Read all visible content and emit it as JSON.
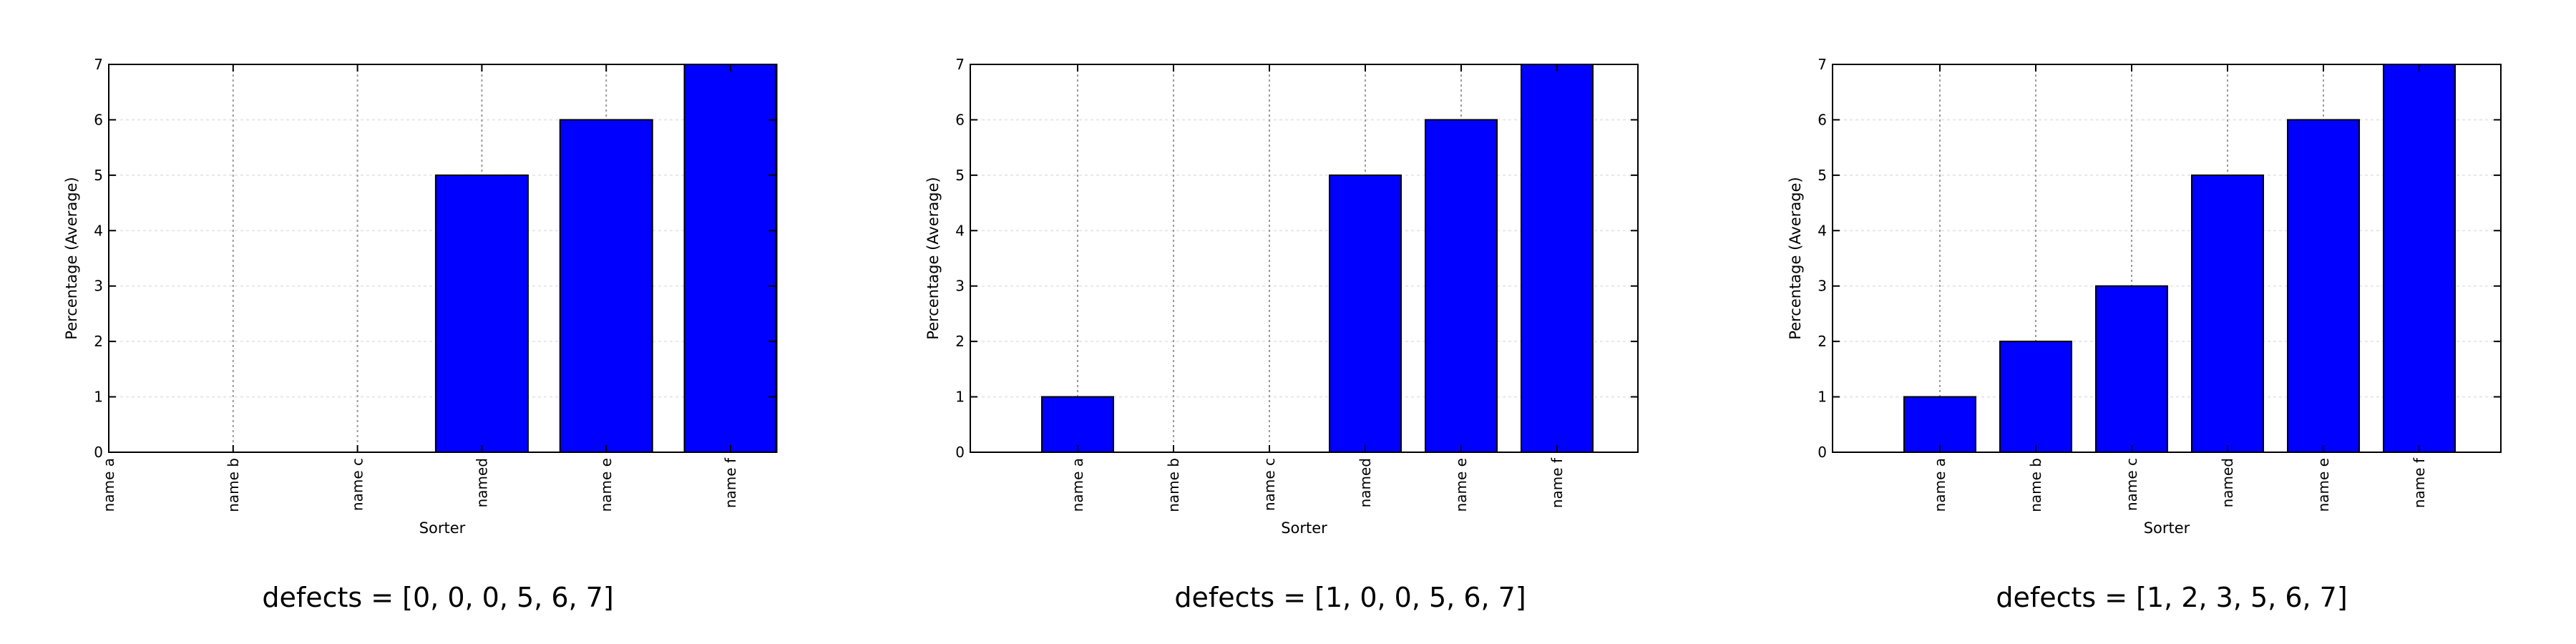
{
  "colors": {
    "bar": "#0000ff",
    "axis": "#000000",
    "grid": "#9a9a9a"
  },
  "chart_data": [
    {
      "type": "bar",
      "categories": [
        "name a",
        "name b",
        "name c",
        "named",
        "name e",
        "name f"
      ],
      "values": [
        0,
        0,
        0,
        5,
        6,
        7
      ],
      "xlabel": "Sorter",
      "ylabel": "Percentage (Average)",
      "ylim": [
        0,
        7
      ],
      "yticks": [
        "0",
        "1",
        "2",
        "3",
        "4",
        "5",
        "6",
        "7"
      ],
      "grid": true,
      "caption": "defects = [0, 0, 0, 5, 6, 7]"
    },
    {
      "type": "bar",
      "categories": [
        "name a",
        "name b",
        "name c",
        "named",
        "name e",
        "name f"
      ],
      "values": [
        1,
        0,
        0,
        5,
        6,
        7
      ],
      "xlabel": "Sorter",
      "ylabel": "Percentage (Average)",
      "ylim": [
        0,
        7
      ],
      "yticks": [
        "0",
        "1",
        "2",
        "3",
        "4",
        "5",
        "6",
        "7"
      ],
      "grid": true,
      "caption": "defects = [1, 0, 0, 5, 6, 7]"
    },
    {
      "type": "bar",
      "categories": [
        "name a",
        "name b",
        "name c",
        "named",
        "name e",
        "name f"
      ],
      "values": [
        1,
        2,
        3,
        5,
        6,
        7
      ],
      "xlabel": "Sorter",
      "ylabel": "Percentage (Average)",
      "ylim": [
        0,
        7
      ],
      "yticks": [
        "0",
        "1",
        "2",
        "3",
        "4",
        "5",
        "6",
        "7"
      ],
      "grid": true,
      "caption": "defects = [1, 2, 3, 5, 6, 7]"
    }
  ]
}
